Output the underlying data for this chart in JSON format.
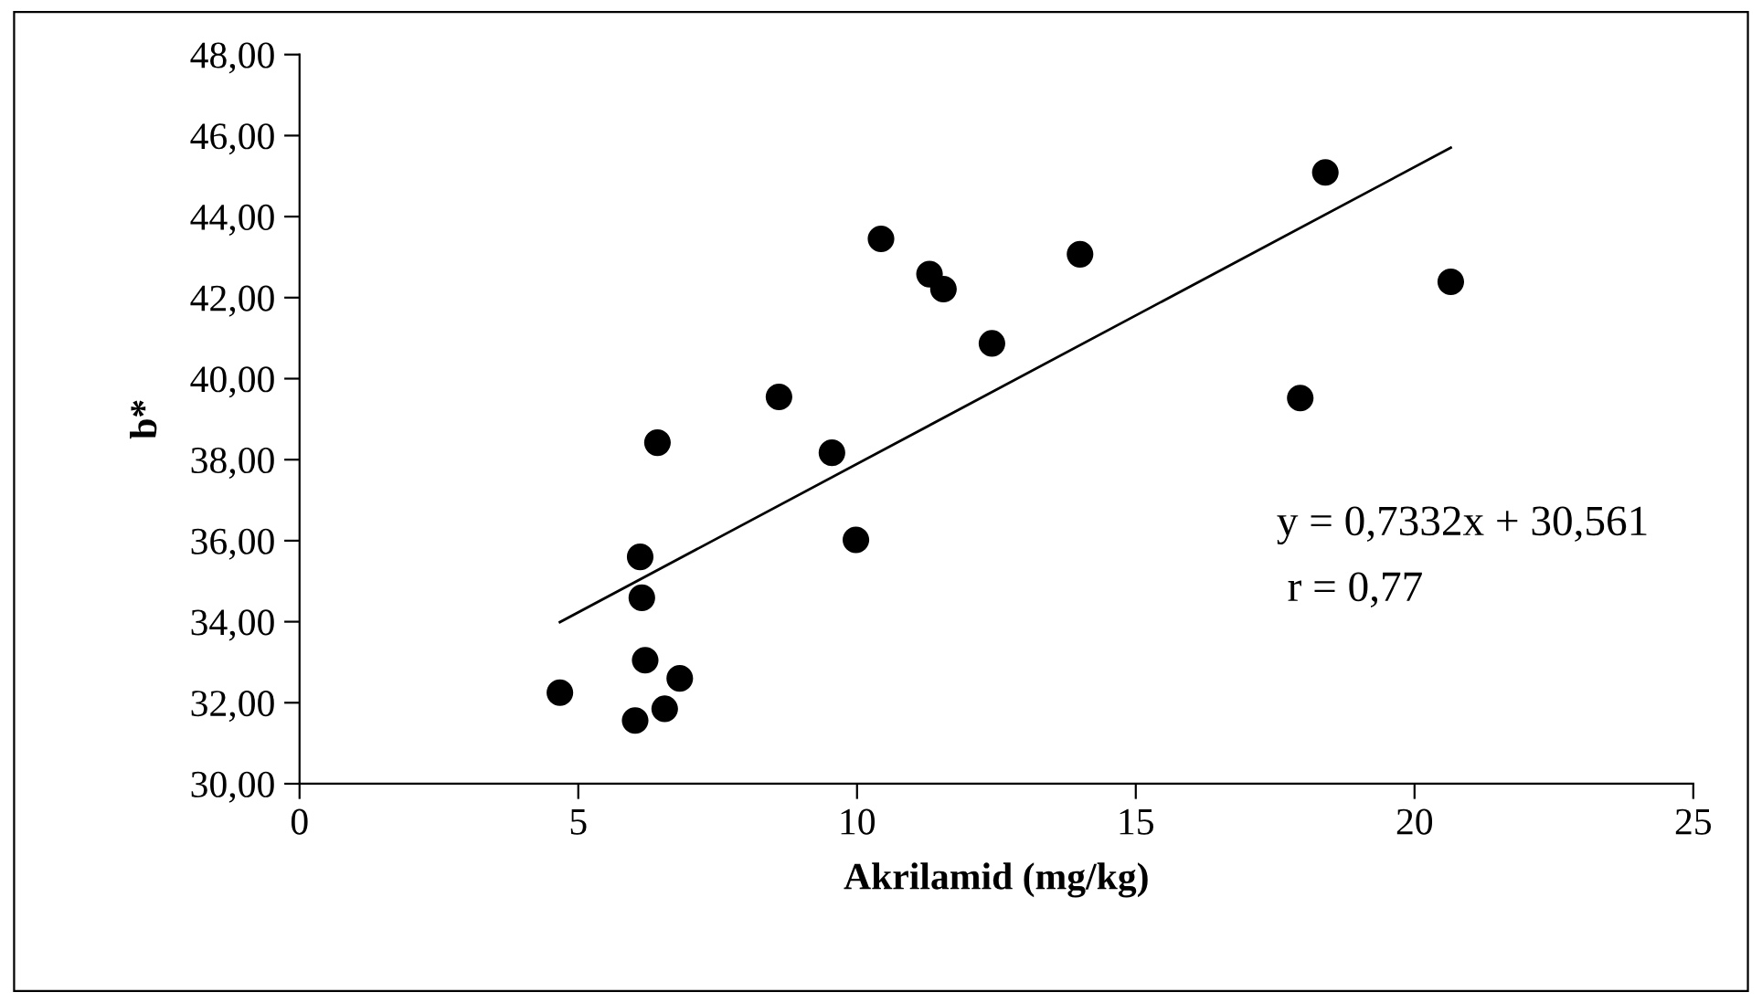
{
  "chart_data": {
    "type": "scatter",
    "xlabel": "Akrilamid (mg/kg)",
    "ylabel": "b*",
    "series": [
      {
        "color": "#000000",
        "marker": "circle",
        "x": [
          4.67,
          6.02,
          6.11,
          6.14,
          6.2,
          6.55,
          6.82,
          6.42,
          8.6,
          9.55,
          9.98,
          10.43,
          11.3,
          11.55,
          12.42,
          14.0,
          18.4,
          17.95,
          20.65
        ],
        "values": [
          32.25,
          31.56,
          35.6,
          34.59,
          33.05,
          31.85,
          32.6,
          38.42,
          39.55,
          38.17,
          36.02,
          43.45,
          42.58,
          42.21,
          40.87,
          43.07,
          45.09,
          39.52,
          42.39
        ]
      },
      {
        "type": "line",
        "color": "#000000",
        "marker": "none",
        "line_style": "solid",
        "x": [
          4.67,
          20.65
        ],
        "values": [
          33.99,
          45.7
        ]
      }
    ],
    "annotations": [
      "y = 0,7332x + 30,561",
      " r = 0,77"
    ],
    "xlim": [
      0,
      25
    ],
    "xticks": [
      0,
      5,
      10,
      15,
      20,
      25
    ],
    "ylim": [
      30,
      48
    ],
    "yticks": [
      {
        "value": 30,
        "label": "30,00"
      },
      {
        "value": 32,
        "label": "32,00"
      },
      {
        "value": 34,
        "label": "34,00"
      },
      {
        "value": 36,
        "label": "36,00"
      },
      {
        "value": 38,
        "label": "38,00"
      },
      {
        "value": 40,
        "label": "40,00"
      },
      {
        "value": 42,
        "label": "42,00"
      },
      {
        "value": 44,
        "label": "44,00"
      },
      {
        "value": 46,
        "label": "46,00"
      },
      {
        "value": 48,
        "label": "48,00"
      }
    ],
    "grid": false,
    "legend": false
  }
}
